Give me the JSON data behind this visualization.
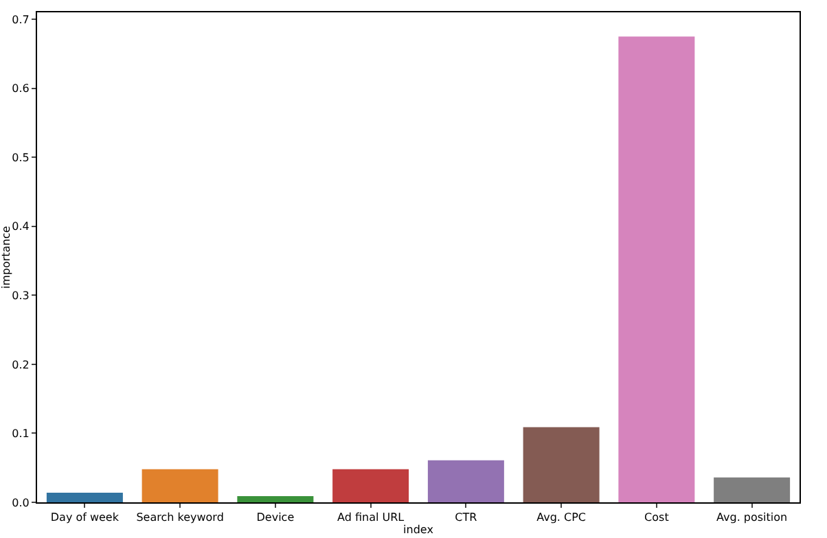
{
  "chart_data": {
    "type": "bar",
    "xlabel": "index",
    "ylabel": "importance",
    "categories": [
      "Day of week",
      "Search keyword",
      "Device",
      "Ad final URL",
      "CTR",
      "Avg. CPC",
      "Cost",
      "Avg. position"
    ],
    "values": [
      0.014,
      0.048,
      0.009,
      0.048,
      0.061,
      0.109,
      0.675,
      0.036
    ],
    "colors": [
      "#3274a1",
      "#e1812c",
      "#3a923a",
      "#c03d3e",
      "#9372b2",
      "#845b53",
      "#d684bd",
      "#7f7f7f"
    ],
    "ylim": [
      0,
      0.71
    ],
    "yticks": [
      {
        "value": 0,
        "label": "0.0"
      },
      0.1,
      0.2,
      0.3,
      0.4,
      0.5,
      0.6,
      0.7
    ],
    "grid": false
  }
}
